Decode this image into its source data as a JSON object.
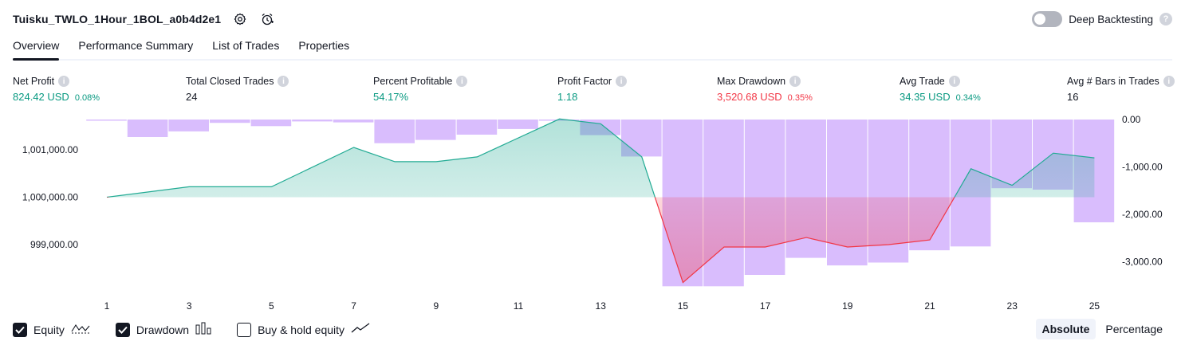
{
  "header": {
    "title": "Tuisku_TWLO_1Hour_1BOL_a0b4d2e1",
    "deep_backtesting_label": "Deep Backtesting",
    "deep_backtesting_enabled": false
  },
  "tabs": [
    {
      "label": "Overview",
      "active": true
    },
    {
      "label": "Performance Summary",
      "active": false
    },
    {
      "label": "List of Trades",
      "active": false
    },
    {
      "label": "Properties",
      "active": false
    }
  ],
  "metrics": [
    {
      "label": "Net Profit",
      "value": "824.42 USD",
      "pct": "0.08%",
      "tone": "green"
    },
    {
      "label": "Total Closed Trades",
      "value": "24",
      "pct": "",
      "tone": "neutral"
    },
    {
      "label": "Percent Profitable",
      "value": "54.17%",
      "pct": "",
      "tone": "green"
    },
    {
      "label": "Profit Factor",
      "value": "1.18",
      "pct": "",
      "tone": "green"
    },
    {
      "label": "Max Drawdown",
      "value": "3,520.68 USD",
      "pct": "0.35%",
      "tone": "red"
    },
    {
      "label": "Avg Trade",
      "value": "34.35 USD",
      "pct": "0.34%",
      "tone": "green"
    },
    {
      "label": "Avg # Bars in Trades",
      "value": "16",
      "pct": "",
      "tone": "neutral"
    }
  ],
  "chart_data": {
    "type": "line",
    "x_ticks": [
      "1",
      "3",
      "5",
      "7",
      "9",
      "11",
      "13",
      "15",
      "17",
      "19",
      "21",
      "23",
      "25"
    ],
    "left_axis": {
      "ticks": [
        "1,001,000.00",
        "1,000,000.00",
        "999,000.00"
      ],
      "tick_values": [
        1001000,
        1000000,
        999000
      ],
      "baseline": 1000000
    },
    "right_axis": {
      "ticks": [
        "0.00",
        "-1,000.00",
        "-2,000.00",
        "-3,000.00"
      ],
      "tick_values": [
        0,
        -1000,
        -2000,
        -3000
      ]
    },
    "series": [
      {
        "name": "Equity",
        "x": [
          1,
          3,
          5,
          7,
          8,
          9,
          10,
          12,
          13,
          14,
          15,
          16,
          17,
          18,
          19,
          20,
          21,
          22,
          23,
          24,
          25
        ],
        "values": [
          1000000,
          1000220,
          1000220,
          1001050,
          1000750,
          1000750,
          1000850,
          1001650,
          1001550,
          1000850,
          998200,
          998950,
          998950,
          999150,
          998950,
          999000,
          999100,
          1000600,
          1000250,
          1000930,
          1000830
        ]
      },
      {
        "name": "Drawdown",
        "categories": [
          1,
          2,
          3,
          4,
          5,
          6,
          7,
          8,
          9,
          10,
          11,
          12,
          13,
          14,
          15,
          16,
          17,
          18,
          19,
          20,
          21,
          22,
          23,
          24,
          25
        ],
        "values": [
          -10,
          -370,
          -250,
          -70,
          -140,
          -40,
          -60,
          -500,
          -430,
          -320,
          -200,
          0,
          -330,
          -780,
          -3520,
          -3520,
          -3280,
          -2920,
          -3080,
          -3020,
          -2760,
          -2680,
          -1450,
          -1480,
          -2170
        ]
      }
    ],
    "colors": {
      "equity_up": "#22ab94",
      "equity_down": "#f23645",
      "drawdown": "#cba4fc"
    }
  },
  "legend": [
    {
      "label": "Equity",
      "checked": true,
      "icon": "equity-wave-icon"
    },
    {
      "label": "Drawdown",
      "checked": true,
      "icon": "drawdown-bars-icon"
    },
    {
      "label": "Buy & hold equity",
      "checked": false,
      "icon": "buy-hold-line-icon"
    }
  ],
  "modes": [
    {
      "label": "Absolute",
      "active": true
    },
    {
      "label": "Percentage",
      "active": false
    }
  ]
}
